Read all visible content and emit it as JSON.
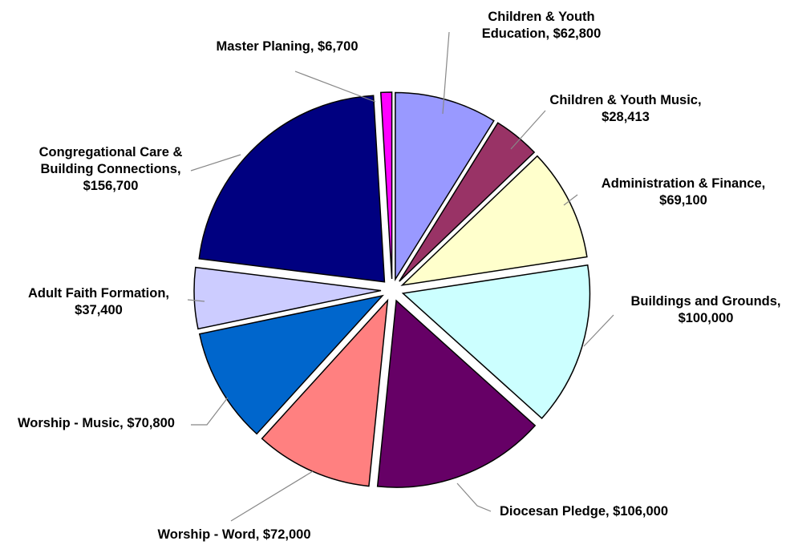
{
  "chart_data": {
    "type": "pie",
    "title": "",
    "exploded": true,
    "slices": [
      {
        "name": "Children & Youth Education",
        "value": 62800,
        "color": "#9999ff",
        "label": [
          "Children & Youth",
          "Education, $62,800"
        ]
      },
      {
        "name": "Children & Youth Music",
        "value": 28413,
        "color": "#993366",
        "label": [
          "Children & Youth Music,",
          "$28,413"
        ]
      },
      {
        "name": "Administration & Finance",
        "value": 69100,
        "color": "#ffffcc",
        "label": [
          "Administration & Finance,",
          "$69,100"
        ]
      },
      {
        "name": "Buildings and Grounds",
        "value": 100000,
        "color": "#ccffff",
        "label": [
          "Buildings and Grounds,",
          "$100,000"
        ]
      },
      {
        "name": "Diocesan Pledge",
        "value": 106000,
        "color": "#660066",
        "label": [
          "Diocesan Pledge, $106,000"
        ]
      },
      {
        "name": "Worship - Word",
        "value": 72000,
        "color": "#ff8080",
        "label": [
          "Worship - Word, $72,000"
        ]
      },
      {
        "name": "Worship - Music",
        "value": 70800,
        "color": "#0066cc",
        "label": [
          "Worship - Music, $70,800"
        ]
      },
      {
        "name": "Adult Faith Formation",
        "value": 37400,
        "color": "#ccccff",
        "label": [
          "Adult Faith Formation,",
          "$37,400"
        ]
      },
      {
        "name": "Congregational Care & Building Connections",
        "value": 156700,
        "color": "#000080",
        "label": [
          "Congregational Care &",
          "Building Connections,",
          "$156,700"
        ]
      },
      {
        "name": "Master Planing",
        "value": 6700,
        "color": "#ff00ff",
        "label": [
          "Master Planing, $6,700"
        ]
      }
    ]
  }
}
